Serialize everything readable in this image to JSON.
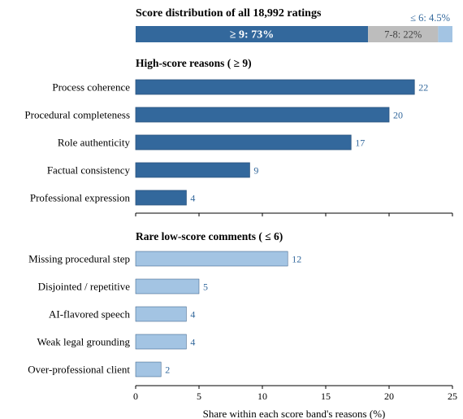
{
  "chart_data": {
    "type": "bar",
    "orientation": "horizontal",
    "stacked_bar": {
      "title": "Score distribution of all 18,992 ratings",
      "segments": [
        {
          "label": "≥ 9: 73%",
          "value": 73,
          "color": "#33689c"
        },
        {
          "label": "7-8: 22%",
          "value": 22,
          "color": "#bdbdbd"
        },
        {
          "label": "≤ 6: 4.5%",
          "value": 4.5,
          "color": "#a3c4e3"
        }
      ]
    },
    "panels": [
      {
        "title": "High-score reasons ( ≥ 9)",
        "color": "#33689c",
        "categories": [
          "Process coherence",
          "Procedural completeness",
          "Role authenticity",
          "Factual consistency",
          "Professional expression"
        ],
        "values": [
          22,
          20,
          17,
          9,
          4
        ]
      },
      {
        "title": "Rare low-score comments ( ≤ 6)",
        "color": "#a3c4e3",
        "categories": [
          "Missing procedural step",
          "Disjointed / repetitive",
          "AI-flavored speech",
          "Weak legal grounding",
          "Over-professional client"
        ],
        "values": [
          12,
          5,
          4,
          4,
          2
        ]
      }
    ],
    "xlabel": "Share within each score band's reasons (%)",
    "xlim": [
      0,
      25
    ],
    "xticks": [
      0,
      5,
      10,
      15,
      20,
      25
    ],
    "label_color": "#33689c"
  }
}
